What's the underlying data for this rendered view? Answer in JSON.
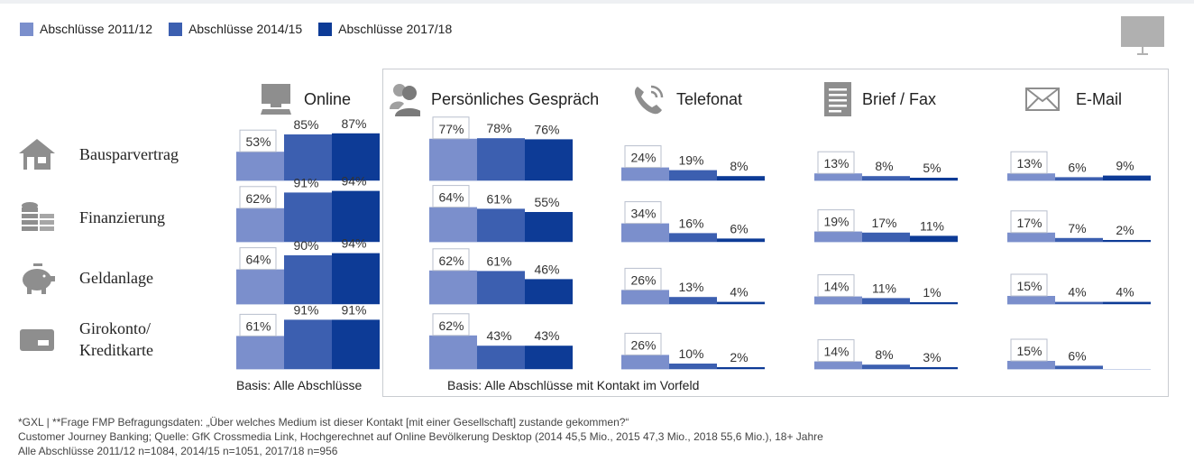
{
  "legend": [
    {
      "label": "Abschlüsse 2011/12",
      "color": "#7b8fcc"
    },
    {
      "label": "Abschlüsse 2014/15",
      "color": "#3c5fb0"
    },
    {
      "label": "Abschlüsse 2017/18",
      "color": "#0d3b96"
    }
  ],
  "icons": {
    "online": "computer-icon",
    "gespraech": "people-icon",
    "telefonat": "phone-icon",
    "brief": "document-icon",
    "email": "envelope-icon",
    "bausparvertrag": "house-icon",
    "finanzierung": "coins-icon",
    "geldanlage": "piggy-bank-icon",
    "girokonto": "card-icon",
    "presentation": "presentation-screen-icon"
  },
  "basis_online": "Basis: Alle Abschlüsse",
  "basis_contact": "Basis: Alle Abschlüsse mit Kontakt im Vorfeld",
  "footnote": [
    "*GXL | **Frage FMP Befragungsdaten: „Über welches Medium ist dieser Kontakt [mit einer Gesellschaft] zustande gekommen?“",
    "Customer Journey Banking; Quelle: GfK Crossmedia Link, Hochgerechnet auf Online Bevölkerung Desktop (2014 45,5 Mio., 2015 47,3 Mio., 2018 55,6 Mio.), 18+ Jahre",
    "Alle Abschlüsse 2011/12 n=1084, 2014/15 n=1051, 2017/18 n=956"
  ],
  "chart_data": {
    "type": "bar",
    "series": [
      {
        "name": "Abschlüsse 2011/12"
      },
      {
        "name": "Abschlüsse 2014/15"
      },
      {
        "name": "Abschlüsse 2017/18"
      }
    ],
    "channels": [
      "Online",
      "Persönliches Gespräch",
      "Telefonat",
      "Brief / Fax",
      "E-Mail"
    ],
    "products": [
      "Bausparvertrag",
      "Finanzierung",
      "Geldanlage",
      "Girokonto/ Kreditkarte"
    ],
    "unit": "%",
    "values": [
      [
        [
          53,
          85,
          87
        ],
        [
          77,
          78,
          76
        ],
        [
          24,
          19,
          8
        ],
        [
          13,
          8,
          5
        ],
        [
          13,
          6,
          9
        ]
      ],
      [
        [
          62,
          91,
          94
        ],
        [
          64,
          61,
          55
        ],
        [
          34,
          16,
          6
        ],
        [
          19,
          17,
          11
        ],
        [
          17,
          7,
          2
        ]
      ],
      [
        [
          64,
          90,
          94
        ],
        [
          62,
          61,
          46
        ],
        [
          26,
          13,
          4
        ],
        [
          14,
          11,
          1
        ],
        [
          15,
          4,
          4
        ]
      ],
      [
        [
          61,
          91,
          91
        ],
        [
          62,
          43,
          43
        ],
        [
          26,
          10,
          2
        ],
        [
          14,
          8,
          3
        ],
        [
          15,
          6,
          null
        ]
      ]
    ]
  }
}
